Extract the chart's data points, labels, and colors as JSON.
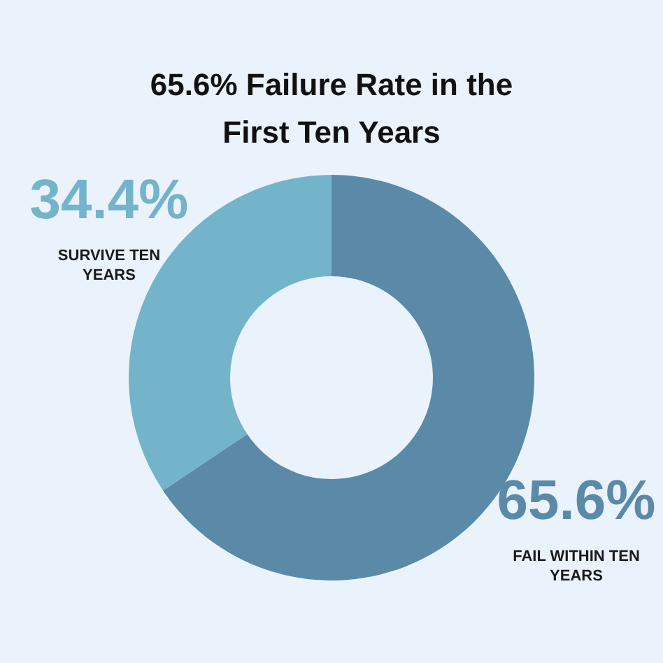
{
  "chart_data": {
    "type": "donut",
    "title": "65.6% Failure Rate in the First Ten Years",
    "categories": [
      "SURVIVE TEN YEARS",
      "FAIL WITHIN TEN YEARS"
    ],
    "values": [
      34.4,
      65.6
    ],
    "value_labels": [
      "34.4%",
      "65.6%"
    ],
    "colors": [
      "#74b4cb",
      "#5b8aa8"
    ],
    "legend": false
  }
}
